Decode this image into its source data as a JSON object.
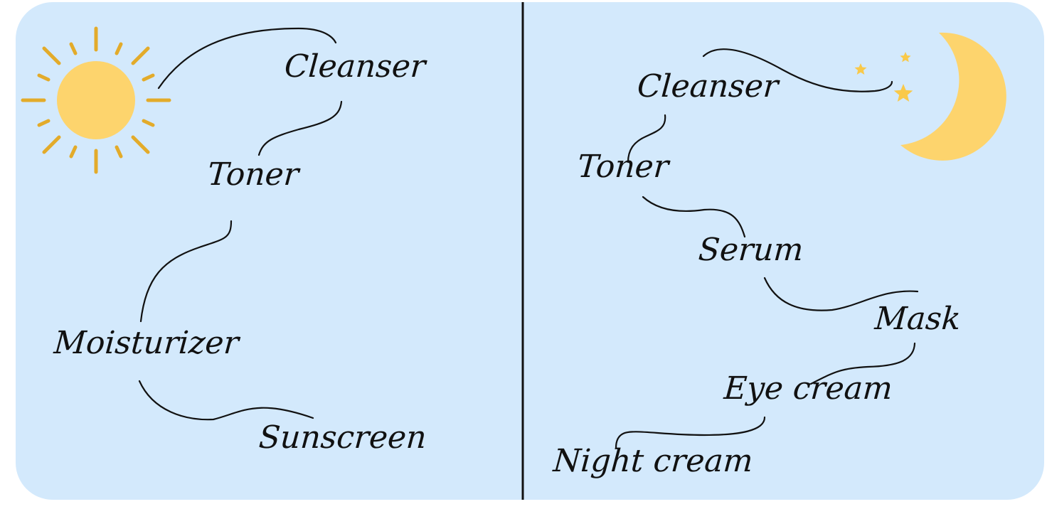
{
  "morning": {
    "icon": "sun-icon",
    "steps": [
      "Cleanser",
      "Toner",
      "Moisturizer",
      "Sunscreen"
    ]
  },
  "night": {
    "icon": "moon-icon",
    "steps": [
      "Cleanser",
      "Toner",
      "Serum",
      "Mask",
      "Eye cream",
      "Night cream"
    ]
  },
  "colors": {
    "background": "#d3e9fc",
    "sun": "#fdd46d",
    "sun_rays": "#e3ab2a",
    "moon": "#fdd46d",
    "stars": "#f9c94a",
    "ink": "#111111"
  }
}
